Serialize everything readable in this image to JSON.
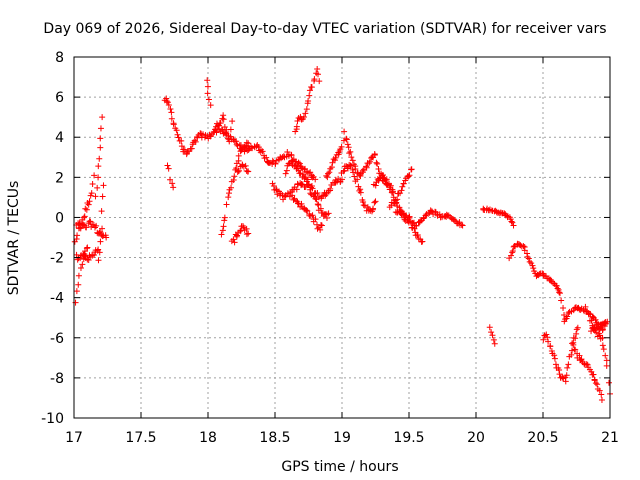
{
  "chart_data": {
    "type": "scatter",
    "title": "Day 069 of 2026, Sidereal Day-to-day VTEC variation (SDTVAR) for receiver vars",
    "xlabel": "GPS time / hours",
    "ylabel": "SDTVAR / TECUs",
    "xlim": [
      17,
      21
    ],
    "ylim": [
      -10,
      8
    ],
    "xticks": [
      "17",
      "17.5",
      "18",
      "18.5",
      "19",
      "19.5",
      "20",
      "20.5",
      "21"
    ],
    "yticks": [
      "-10",
      "-8",
      "-6",
      "-4",
      "-2",
      "0",
      "2",
      "4",
      "6",
      "8"
    ],
    "grid": true,
    "marker": "+",
    "colors": {
      "series": "#ff0000",
      "grid": "#a0a0a0",
      "axes": "#000000"
    },
    "segments": [
      {
        "pts": [
          [
            17.01,
            -4.2
          ],
          [
            17.03,
            -3.4
          ],
          [
            17.05,
            -2.6
          ],
          [
            17.07,
            -2.0
          ],
          [
            17.1,
            -1.5
          ]
        ],
        "jitter": 0.25
      },
      {
        "pts": [
          [
            17.01,
            -1.2
          ],
          [
            17.04,
            -0.5
          ],
          [
            17.07,
            0.0
          ],
          [
            17.1,
            0.6
          ],
          [
            17.13,
            1.3
          ],
          [
            17.15,
            2.1
          ]
        ],
        "jitter": 0.35
      },
      {
        "pts": [
          [
            17.02,
            -2.0
          ],
          [
            17.06,
            -1.8
          ],
          [
            17.1,
            -2.1
          ],
          [
            17.14,
            -1.9
          ],
          [
            17.18,
            -1.6
          ]
        ],
        "jitter": 0.3
      },
      {
        "pts": [
          [
            17.02,
            -0.4
          ],
          [
            17.08,
            -0.5
          ],
          [
            17.13,
            -0.3
          ],
          [
            17.18,
            -0.7
          ],
          [
            17.24,
            -1.0
          ]
        ],
        "jitter": 0.35
      },
      {
        "pts": [
          [
            17.16,
            1.0
          ],
          [
            17.18,
            2.0
          ],
          [
            17.19,
            3.0
          ],
          [
            17.2,
            4.0
          ],
          [
            17.21,
            5.0
          ]
        ],
        "jitter": 0.15
      },
      {
        "pts": [
          [
            17.18,
            -2.2
          ],
          [
            17.2,
            -1.2
          ],
          [
            17.21,
            0.2
          ],
          [
            17.22,
            1.6
          ]
        ],
        "jitter": 0.3
      },
      {
        "pts": [
          [
            17.68,
            5.9
          ],
          [
            17.71,
            5.6
          ],
          [
            17.74,
            4.8
          ],
          [
            17.78,
            4.0
          ],
          [
            17.82,
            3.3
          ],
          [
            17.86,
            3.2
          ],
          [
            17.9,
            3.8
          ],
          [
            17.94,
            4.1
          ],
          [
            18.0,
            4.0
          ],
          [
            18.05,
            4.3
          ],
          [
            18.1,
            4.4
          ],
          [
            18.15,
            4.0
          ],
          [
            18.2,
            3.8
          ],
          [
            18.25,
            3.5
          ],
          [
            18.3,
            3.4
          ],
          [
            18.35,
            3.6
          ],
          [
            18.4,
            3.3
          ],
          [
            18.45,
            2.8
          ],
          [
            18.5,
            2.7
          ],
          [
            18.55,
            3.0
          ],
          [
            18.6,
            3.2
          ],
          [
            18.65,
            2.8
          ],
          [
            18.7,
            2.5
          ],
          [
            18.75,
            2.2
          ],
          [
            18.8,
            1.9
          ]
        ],
        "jitter": 0.22
      },
      {
        "pts": [
          [
            17.7,
            2.7
          ],
          [
            17.72,
            2.0
          ],
          [
            17.74,
            1.5
          ]
        ],
        "jitter": 0.25
      },
      {
        "pts": [
          [
            17.99,
            6.9
          ],
          [
            18.0,
            6.2
          ],
          [
            18.02,
            5.6
          ]
        ],
        "jitter": 0.2
      },
      {
        "pts": [
          [
            18.05,
            4.4
          ],
          [
            18.08,
            4.7
          ],
          [
            18.11,
            5.0
          ],
          [
            18.14,
            4.3
          ],
          [
            18.16,
            3.8
          ],
          [
            18.18,
            4.8
          ]
        ],
        "jitter": 0.3
      },
      {
        "pts": [
          [
            18.1,
            -0.7
          ],
          [
            18.13,
            0.1
          ],
          [
            18.15,
            0.9
          ],
          [
            18.18,
            1.7
          ],
          [
            18.21,
            2.6
          ],
          [
            18.24,
            3.2
          ],
          [
            18.27,
            3.4
          ],
          [
            18.3,
            3.7
          ]
        ],
        "jitter": 0.3
      },
      {
        "pts": [
          [
            18.18,
            -1.3
          ],
          [
            18.22,
            -0.8
          ],
          [
            18.26,
            -0.4
          ],
          [
            18.3,
            -0.8
          ]
        ],
        "jitter": 0.3
      },
      {
        "pts": [
          [
            18.22,
            2.2
          ],
          [
            18.26,
            2.6
          ],
          [
            18.3,
            2.3
          ]
        ],
        "jitter": 0.2
      },
      {
        "pts": [
          [
            18.48,
            1.6
          ],
          [
            18.52,
            1.2
          ],
          [
            18.56,
            1.0
          ],
          [
            18.6,
            1.1
          ],
          [
            18.65,
            1.5
          ],
          [
            18.7,
            1.7
          ],
          [
            18.75,
            1.5
          ],
          [
            18.8,
            1.0
          ],
          [
            18.83,
            0.5
          ],
          [
            18.86,
            0.0
          ],
          [
            18.9,
            0.2
          ]
        ],
        "jitter": 0.3
      },
      {
        "pts": [
          [
            18.58,
            2.3
          ],
          [
            18.62,
            2.8
          ],
          [
            18.66,
            2.5
          ],
          [
            18.7,
            2.1
          ],
          [
            18.75,
            1.8
          ],
          [
            18.8,
            1.2
          ],
          [
            18.85,
            1.0
          ],
          [
            18.9,
            1.4
          ],
          [
            18.95,
            1.8
          ],
          [
            19.0,
            1.9
          ]
        ],
        "jitter": 0.25
      },
      {
        "pts": [
          [
            18.63,
            1.0
          ],
          [
            18.68,
            0.7
          ],
          [
            18.72,
            0.4
          ],
          [
            18.76,
            0.2
          ],
          [
            18.8,
            -0.2
          ],
          [
            18.82,
            -0.6
          ],
          [
            18.85,
            -0.4
          ]
        ],
        "jitter": 0.25
      },
      {
        "pts": [
          [
            18.65,
            4.3
          ],
          [
            18.68,
            4.9
          ],
          [
            18.72,
            5.0
          ],
          [
            18.75,
            5.9
          ],
          [
            18.78,
            6.6
          ],
          [
            18.81,
            7.3
          ],
          [
            18.83,
            6.8
          ]
        ],
        "jitter": 0.22
      },
      {
        "pts": [
          [
            18.88,
            2.0
          ],
          [
            18.92,
            2.6
          ],
          [
            18.96,
            3.1
          ],
          [
            19.0,
            3.4
          ],
          [
            19.02,
            4.2
          ],
          [
            19.05,
            3.5
          ],
          [
            19.08,
            2.8
          ],
          [
            19.12,
            2.1
          ],
          [
            19.16,
            2.3
          ],
          [
            19.2,
            2.7
          ],
          [
            19.24,
            3.2
          ],
          [
            19.28,
            2.2
          ],
          [
            19.33,
            1.9
          ],
          [
            19.38,
            1.3
          ]
        ],
        "jitter": 0.25
      },
      {
        "pts": [
          [
            19.0,
            2.2
          ],
          [
            19.04,
            2.6
          ],
          [
            19.08,
            2.4
          ],
          [
            19.12,
            1.6
          ],
          [
            19.15,
            1.0
          ],
          [
            19.18,
            0.4
          ],
          [
            19.22,
            0.3
          ],
          [
            19.25,
            0.8
          ]
        ],
        "jitter": 0.3
      },
      {
        "pts": [
          [
            19.24,
            1.6
          ],
          [
            19.28,
            2.0
          ],
          [
            19.32,
            1.8
          ],
          [
            19.36,
            1.4
          ],
          [
            19.4,
            0.8
          ],
          [
            19.44,
            0.3
          ],
          [
            19.48,
            -0.1
          ],
          [
            19.52,
            -0.4
          ],
          [
            19.56,
            -0.9
          ],
          [
            19.6,
            -1.2
          ]
        ],
        "jitter": 0.2
      },
      {
        "pts": [
          [
            19.36,
            0.5
          ],
          [
            19.4,
            0.9
          ],
          [
            19.44,
            1.4
          ],
          [
            19.48,
            1.9
          ],
          [
            19.52,
            2.4
          ]
        ],
        "jitter": 0.2
      },
      {
        "pts": [
          [
            19.4,
            0.3
          ],
          [
            19.45,
            0.2
          ],
          [
            19.5,
            0.0
          ],
          [
            19.55,
            -0.4
          ],
          [
            19.6,
            -0.1
          ],
          [
            19.65,
            0.3
          ],
          [
            19.7,
            0.2
          ],
          [
            19.75,
            0.0
          ],
          [
            19.8,
            0.1
          ],
          [
            19.85,
            -0.2
          ],
          [
            19.9,
            -0.4
          ]
        ],
        "jitter": 0.15
      },
      {
        "pts": [
          [
            20.05,
            0.4
          ],
          [
            20.1,
            0.4
          ],
          [
            20.15,
            0.3
          ],
          [
            20.2,
            0.2
          ],
          [
            20.25,
            0.0
          ],
          [
            20.28,
            -0.4
          ]
        ],
        "jitter": 0.1
      },
      {
        "pts": [
          [
            20.1,
            -5.5
          ],
          [
            20.12,
            -5.9
          ],
          [
            20.14,
            -6.3
          ]
        ],
        "jitter": 0.1
      },
      {
        "pts": [
          [
            20.25,
            -2.0
          ],
          [
            20.28,
            -1.5
          ],
          [
            20.32,
            -1.3
          ],
          [
            20.36,
            -1.5
          ],
          [
            20.4,
            -2.2
          ],
          [
            20.45,
            -2.9
          ],
          [
            20.5,
            -2.8
          ],
          [
            20.55,
            -3.1
          ],
          [
            20.6,
            -3.4
          ],
          [
            20.63,
            -3.8
          ],
          [
            20.66,
            -5.2
          ],
          [
            20.7,
            -4.7
          ],
          [
            20.75,
            -4.5
          ],
          [
            20.8,
            -4.6
          ],
          [
            20.85,
            -4.8
          ],
          [
            20.88,
            -5.0
          ],
          [
            20.92,
            -5.5
          ],
          [
            20.95,
            -5.6
          ],
          [
            20.97,
            -5.3
          ]
        ],
        "jitter": 0.1
      },
      {
        "pts": [
          [
            20.5,
            -6.0
          ],
          [
            20.53,
            -5.9
          ],
          [
            20.55,
            -6.4
          ],
          [
            20.58,
            -6.9
          ],
          [
            20.61,
            -7.6
          ],
          [
            20.64,
            -8.0
          ],
          [
            20.67,
            -8.1
          ],
          [
            20.7,
            -7.0
          ],
          [
            20.73,
            -6.1
          ],
          [
            20.76,
            -5.5
          ]
        ],
        "jitter": 0.2
      },
      {
        "pts": [
          [
            20.72,
            -6.2
          ],
          [
            20.76,
            -6.9
          ],
          [
            20.8,
            -7.2
          ],
          [
            20.84,
            -7.5
          ],
          [
            20.88,
            -8.0
          ],
          [
            20.92,
            -8.6
          ],
          [
            20.94,
            -9.1
          ]
        ],
        "jitter": 0.2
      },
      {
        "pts": [
          [
            20.82,
            -4.5
          ],
          [
            20.86,
            -5.2
          ],
          [
            20.9,
            -5.8
          ],
          [
            20.94,
            -6.0
          ],
          [
            20.98,
            -7.5
          ],
          [
            21.0,
            -8.8
          ]
        ],
        "jitter": 0.2
      },
      {
        "pts": [
          [
            20.86,
            -5.6
          ],
          [
            20.9,
            -5.4
          ],
          [
            20.95,
            -5.3
          ],
          [
            20.98,
            -5.2
          ]
        ],
        "jitter": 0.15
      }
    ]
  }
}
